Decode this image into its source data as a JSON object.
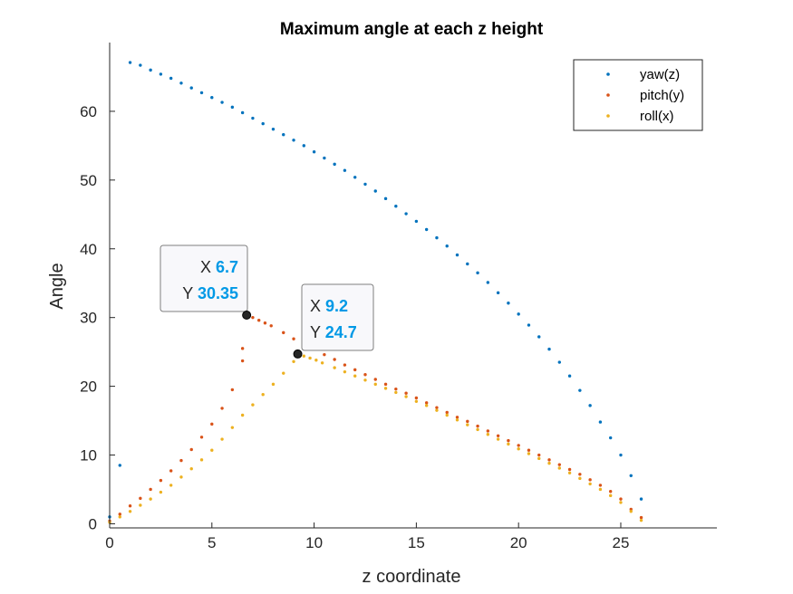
{
  "chart_data": {
    "type": "scatter",
    "title": "Maximum angle at each z height",
    "xlabel": "z coordinate",
    "ylabel": "Angle",
    "xlim": [
      0,
      29.7
    ],
    "ylim": [
      -0.6,
      70
    ],
    "xticks": [
      0,
      5,
      10,
      15,
      20,
      25
    ],
    "yticks": [
      0,
      10,
      20,
      30,
      40,
      50,
      60
    ],
    "grid": false,
    "legend_position": "top-right",
    "series": [
      {
        "name": "yaw(z)",
        "color": "#0072BD",
        "points": [
          [
            0,
            1.0
          ],
          [
            0.5,
            8.5
          ],
          [
            1.0,
            67.1
          ],
          [
            1.5,
            66.7
          ],
          [
            2.0,
            66.0
          ],
          [
            2.5,
            65.4
          ],
          [
            3.0,
            64.8
          ],
          [
            3.5,
            64.1
          ],
          [
            4.0,
            63.4
          ],
          [
            4.5,
            62.7
          ],
          [
            5.0,
            62.0
          ],
          [
            5.5,
            61.3
          ],
          [
            6.0,
            60.6
          ],
          [
            6.5,
            59.8
          ],
          [
            7.0,
            59.0
          ],
          [
            7.5,
            58.2
          ],
          [
            8.0,
            57.4
          ],
          [
            8.5,
            56.6
          ],
          [
            9.0,
            55.8
          ],
          [
            9.5,
            55.0
          ],
          [
            10.0,
            54.1
          ],
          [
            10.5,
            53.2
          ],
          [
            11.0,
            52.3
          ],
          [
            11.5,
            51.4
          ],
          [
            12.0,
            50.4
          ],
          [
            12.5,
            49.4
          ],
          [
            13.0,
            48.4
          ],
          [
            13.5,
            47.3
          ],
          [
            14.0,
            46.2
          ],
          [
            14.5,
            45.1
          ],
          [
            15.0,
            44.0
          ],
          [
            15.5,
            42.8
          ],
          [
            16.0,
            41.6
          ],
          [
            16.5,
            40.4
          ],
          [
            17.0,
            39.1
          ],
          [
            17.5,
            37.8
          ],
          [
            18.0,
            36.5
          ],
          [
            18.5,
            35.1
          ],
          [
            19.0,
            33.6
          ],
          [
            19.5,
            32.1
          ],
          [
            20.0,
            30.5
          ],
          [
            20.5,
            28.9
          ],
          [
            21.0,
            27.2
          ],
          [
            21.5,
            25.4
          ],
          [
            22.0,
            23.5
          ],
          [
            22.5,
            21.5
          ],
          [
            23.0,
            19.4
          ],
          [
            23.5,
            17.2
          ],
          [
            24.0,
            14.8
          ],
          [
            24.5,
            12.5
          ],
          [
            25.0,
            10.0
          ],
          [
            25.5,
            7.0
          ],
          [
            26.0,
            3.6
          ]
        ]
      },
      {
        "name": "pitch(y)",
        "color": "#D95319",
        "points": [
          [
            0,
            0.4
          ],
          [
            0.5,
            1.4
          ],
          [
            1.0,
            2.6
          ],
          [
            1.5,
            3.7
          ],
          [
            2.0,
            5.0
          ],
          [
            2.5,
            6.3
          ],
          [
            3.0,
            7.7
          ],
          [
            3.5,
            9.2
          ],
          [
            4.0,
            10.8
          ],
          [
            4.5,
            12.6
          ],
          [
            5.0,
            14.5
          ],
          [
            5.5,
            16.8
          ],
          [
            6.0,
            19.5
          ],
          [
            6.5,
            23.7
          ],
          [
            6.5,
            25.5
          ],
          [
            6.7,
            30.35
          ],
          [
            7.0,
            30.0
          ],
          [
            7.3,
            29.6
          ],
          [
            7.6,
            29.2
          ],
          [
            7.9,
            28.8
          ],
          [
            8.5,
            27.8
          ],
          [
            9.0,
            26.9
          ],
          [
            9.5,
            26.1
          ],
          [
            10.0,
            25.4
          ],
          [
            10.5,
            24.6
          ],
          [
            11.0,
            23.9
          ],
          [
            11.5,
            23.1
          ],
          [
            12.0,
            22.4
          ],
          [
            12.5,
            21.7
          ],
          [
            13.0,
            21.0
          ],
          [
            13.5,
            20.3
          ],
          [
            14.0,
            19.6
          ],
          [
            14.5,
            19.0
          ],
          [
            15.0,
            18.3
          ],
          [
            15.5,
            17.6
          ],
          [
            16.0,
            16.9
          ],
          [
            16.5,
            16.2
          ],
          [
            17.0,
            15.5
          ],
          [
            17.5,
            14.9
          ],
          [
            18.0,
            14.2
          ],
          [
            18.5,
            13.5
          ],
          [
            19.0,
            12.8
          ],
          [
            19.5,
            12.1
          ],
          [
            20.0,
            11.4
          ],
          [
            20.5,
            10.7
          ],
          [
            21.0,
            10.0
          ],
          [
            21.5,
            9.3
          ],
          [
            22.0,
            8.6
          ],
          [
            22.5,
            7.9
          ],
          [
            23.0,
            7.2
          ],
          [
            23.5,
            6.4
          ],
          [
            24.0,
            5.6
          ],
          [
            24.5,
            4.7
          ],
          [
            25.0,
            3.6
          ],
          [
            25.5,
            2.1
          ],
          [
            26.0,
            0.9
          ]
        ]
      },
      {
        "name": "roll(x)",
        "color": "#EDB120",
        "points": [
          [
            0,
            0.2
          ],
          [
            0.5,
            1.0
          ],
          [
            1.0,
            1.8
          ],
          [
            1.5,
            2.7
          ],
          [
            2.0,
            3.6
          ],
          [
            2.5,
            4.6
          ],
          [
            3.0,
            5.6
          ],
          [
            3.5,
            6.8
          ],
          [
            4.0,
            8.0
          ],
          [
            4.5,
            9.3
          ],
          [
            5.0,
            10.7
          ],
          [
            5.5,
            12.3
          ],
          [
            6.0,
            14.0
          ],
          [
            6.5,
            15.8
          ],
          [
            7.0,
            17.3
          ],
          [
            7.5,
            18.8
          ],
          [
            8.0,
            20.3
          ],
          [
            8.5,
            21.9
          ],
          [
            9.0,
            23.6
          ],
          [
            9.2,
            24.7
          ],
          [
            9.5,
            24.4
          ],
          [
            9.8,
            24.1
          ],
          [
            10.1,
            23.8
          ],
          [
            10.4,
            23.4
          ],
          [
            11.0,
            22.7
          ],
          [
            11.5,
            22.1
          ],
          [
            12.0,
            21.5
          ],
          [
            12.5,
            20.9
          ],
          [
            13.0,
            20.3
          ],
          [
            13.5,
            19.7
          ],
          [
            14.0,
            19.1
          ],
          [
            14.5,
            18.5
          ],
          [
            15.0,
            17.8
          ],
          [
            15.5,
            17.2
          ],
          [
            16.0,
            16.5
          ],
          [
            16.5,
            15.8
          ],
          [
            17.0,
            15.1
          ],
          [
            17.5,
            14.4
          ],
          [
            18.0,
            13.7
          ],
          [
            18.5,
            13.0
          ],
          [
            19.0,
            12.3
          ],
          [
            19.5,
            11.6
          ],
          [
            20.0,
            10.9
          ],
          [
            20.5,
            10.2
          ],
          [
            21.0,
            9.5
          ],
          [
            21.5,
            8.8
          ],
          [
            22.0,
            8.1
          ],
          [
            22.5,
            7.4
          ],
          [
            23.0,
            6.6
          ],
          [
            23.5,
            5.8
          ],
          [
            24.0,
            5.0
          ],
          [
            24.5,
            4.1
          ],
          [
            25.0,
            3.1
          ],
          [
            25.5,
            1.8
          ],
          [
            26.0,
            0.5
          ]
        ]
      }
    ],
    "datatips": [
      {
        "x_label": "X",
        "x_value": "6.7",
        "y_label": "Y",
        "y_value": "30.35",
        "x": 6.7,
        "y": 30.35,
        "series": "pitch(y)"
      },
      {
        "x_label": "X",
        "x_value": "9.2",
        "y_label": "Y",
        "y_value": "24.7",
        "x": 9.2,
        "y": 24.7,
        "series": "roll(x)"
      }
    ],
    "datatip_value_color": "#0099E6"
  }
}
